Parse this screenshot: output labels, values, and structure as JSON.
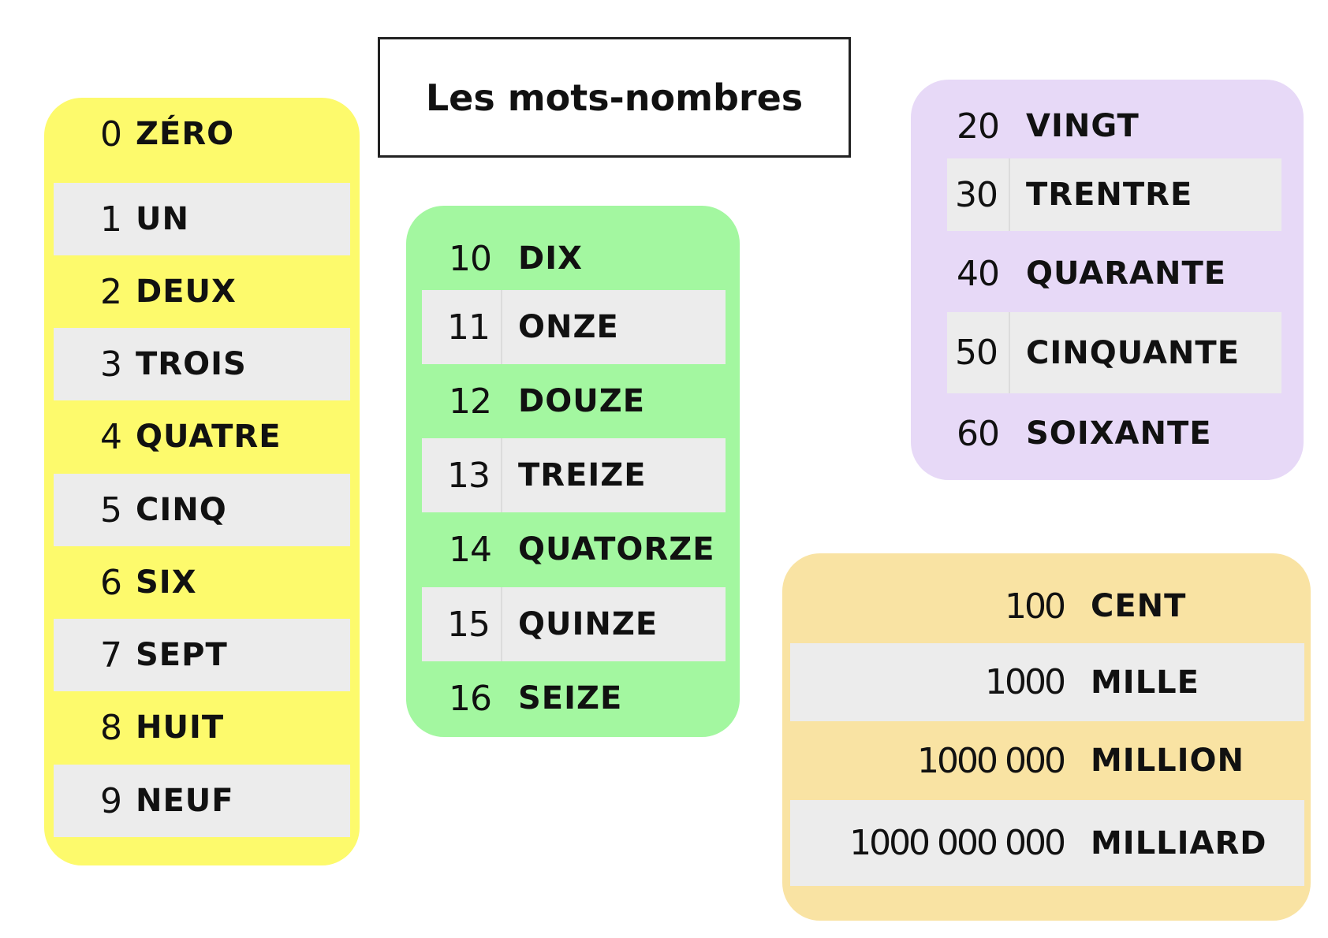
{
  "title": "Les mots-nombres",
  "units": [
    {
      "number": "0",
      "word": "ZÉRO"
    },
    {
      "number": "1",
      "word": "UN"
    },
    {
      "number": "2",
      "word": "DEUX"
    },
    {
      "number": "3",
      "word": "TROIS"
    },
    {
      "number": "4",
      "word": "QUATRE"
    },
    {
      "number": "5",
      "word": "CINQ"
    },
    {
      "number": "6",
      "word": "SIX"
    },
    {
      "number": "7",
      "word": "SEPT"
    },
    {
      "number": "8",
      "word": "HUIT"
    },
    {
      "number": "9",
      "word": "NEUF"
    }
  ],
  "teens": [
    {
      "number": "10",
      "word": "DIX"
    },
    {
      "number": "11",
      "word": "ONZE"
    },
    {
      "number": "12",
      "word": "DOUZE"
    },
    {
      "number": "13",
      "word": "TREIZE"
    },
    {
      "number": "14",
      "word": "QUATORZE"
    },
    {
      "number": "15",
      "word": "QUINZE"
    },
    {
      "number": "16",
      "word": "SEIZE"
    }
  ],
  "tens": [
    {
      "number": "20",
      "word": "VINGT"
    },
    {
      "number": "30",
      "word": "TRENTRE"
    },
    {
      "number": "40",
      "word": "QUARANTE"
    },
    {
      "number": "50",
      "word": "CINQUANTE"
    },
    {
      "number": "60",
      "word": "SOIXANTE"
    }
  ],
  "large": [
    {
      "number": "100",
      "word": "CENT"
    },
    {
      "number": "1000",
      "word": "MILLE"
    },
    {
      "number": "1000 000",
      "word": "MILLION"
    },
    {
      "number": "1000 000 000",
      "word": "MILLIARD"
    }
  ],
  "colors": {
    "yellow_panel": "#fdfa6c",
    "green_panel": "#a3f7a0",
    "purple_panel": "#e7d9f7",
    "orange_panel": "#f9e3a3",
    "alt_row": "#ececec"
  }
}
